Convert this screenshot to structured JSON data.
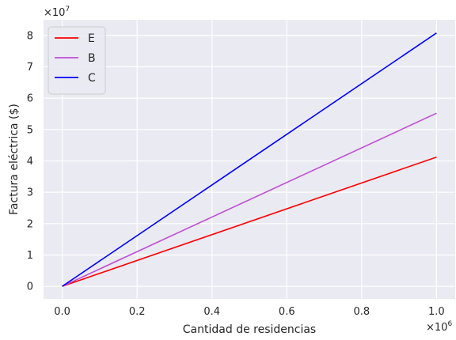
{
  "chart_data": {
    "type": "line",
    "xlabel": "Cantidad de residencias",
    "ylabel": "Factura eléctrica ($)",
    "x_offset_label": "×10",
    "x_offset_exp": "6",
    "y_offset_label": "×10",
    "y_offset_exp": "7",
    "xlim": [
      -0.05,
      1.05
    ],
    "ylim": [
      -0.4,
      8.5
    ],
    "x_ticks": [
      0.0,
      0.2,
      0.4,
      0.6,
      0.8,
      1.0
    ],
    "x_tick_labels": [
      "0.0",
      "0.2",
      "0.4",
      "0.6",
      "0.8",
      "1.0"
    ],
    "y_ticks": [
      0,
      1,
      2,
      3,
      4,
      5,
      6,
      7,
      8
    ],
    "y_tick_labels": [
      "0",
      "1",
      "2",
      "3",
      "4",
      "5",
      "6",
      "7",
      "8"
    ],
    "grid": true,
    "legend_position": "upper-left",
    "series": [
      {
        "name": "E",
        "color": "#ff0000",
        "x": [
          0.0,
          1.0
        ],
        "y": [
          0.0,
          4.12
        ]
      },
      {
        "name": "B",
        "color": "#bf4fd6",
        "x": [
          0.0,
          1.0
        ],
        "y": [
          0.0,
          5.52
        ]
      },
      {
        "name": "C",
        "color": "#0000ff",
        "x": [
          0.0,
          1.0
        ],
        "y": [
          0.0,
          8.08
        ]
      }
    ]
  }
}
